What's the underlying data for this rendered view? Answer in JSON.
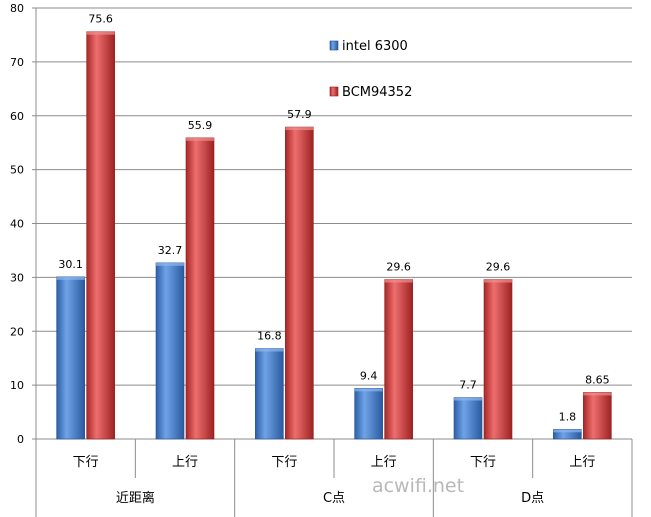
{
  "chart_data": {
    "type": "bar",
    "title": "",
    "xlabel": "",
    "ylabel": "",
    "ylim": [
      0,
      80
    ],
    "yticks": [
      0,
      10,
      20,
      30,
      40,
      50,
      60,
      70,
      80
    ],
    "grid": true,
    "legend_position": "top-right (inside plot)",
    "categories": [
      "下行",
      "上行",
      "下行",
      "上行",
      "下行",
      "上行"
    ],
    "groups": [
      {
        "label": "近距离",
        "categories": [
          "下行",
          "上行"
        ]
      },
      {
        "label": "C点",
        "categories": [
          "下行",
          "上行"
        ]
      },
      {
        "label": "D点",
        "categories": [
          "下行",
          "上行"
        ]
      }
    ],
    "series": [
      {
        "name": "intel 6300",
        "color": "#3f7fd0",
        "values": [
          30.1,
          32.7,
          16.8,
          9.4,
          7.7,
          1.8
        ],
        "labels": [
          "30.1",
          "32.7",
          "16.8",
          "9.4",
          "7.7",
          "1.8"
        ]
      },
      {
        "name": "BCM94352",
        "color": "#d84444",
        "values": [
          75.6,
          55.9,
          57.9,
          29.6,
          29.6,
          8.65
        ],
        "labels": [
          "75.6",
          "55.9",
          "57.9",
          "29.6",
          "29.6",
          "8.65"
        ]
      }
    ],
    "watermark": "acwifi.net"
  }
}
